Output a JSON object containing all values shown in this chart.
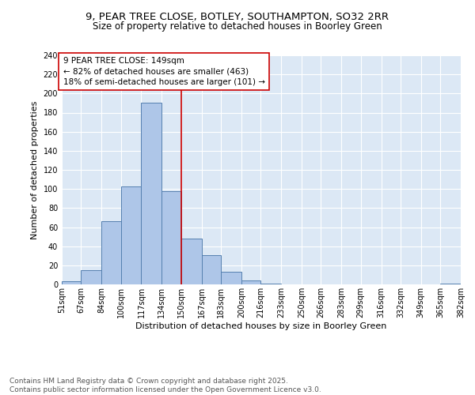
{
  "title_line1": "9, PEAR TREE CLOSE, BOTLEY, SOUTHAMPTON, SO32 2RR",
  "title_line2": "Size of property relative to detached houses in Boorley Green",
  "xlabel": "Distribution of detached houses by size in Boorley Green",
  "ylabel": "Number of detached properties",
  "bin_edges": [
    51,
    67,
    84,
    100,
    117,
    134,
    150,
    167,
    183,
    200,
    216,
    233,
    250,
    266,
    283,
    299,
    316,
    332,
    349,
    365,
    382
  ],
  "bar_heights": [
    3,
    15,
    66,
    103,
    190,
    98,
    48,
    31,
    13,
    4,
    1,
    0,
    0,
    0,
    0,
    0,
    0,
    0,
    0,
    1
  ],
  "bar_color": "#aec6e8",
  "bar_edge_color": "#5580b0",
  "vline_x": 150,
  "vline_color": "#cc0000",
  "annotation_text": "9 PEAR TREE CLOSE: 149sqm\n← 82% of detached houses are smaller (463)\n18% of semi-detached houses are larger (101) →",
  "annotation_box_color": "#ffffff",
  "annotation_box_edge_color": "#cc0000",
  "ylim": [
    0,
    240
  ],
  "yticks": [
    0,
    20,
    40,
    60,
    80,
    100,
    120,
    140,
    160,
    180,
    200,
    220,
    240
  ],
  "background_color": "#dce8f5",
  "grid_color": "#ffffff",
  "footer_text": "Contains HM Land Registry data © Crown copyright and database right 2025.\nContains public sector information licensed under the Open Government Licence v3.0.",
  "title_fontsize": 9.5,
  "subtitle_fontsize": 8.5,
  "label_fontsize": 8,
  "tick_fontsize": 7,
  "annotation_fontsize": 7.5,
  "footer_fontsize": 6.5
}
